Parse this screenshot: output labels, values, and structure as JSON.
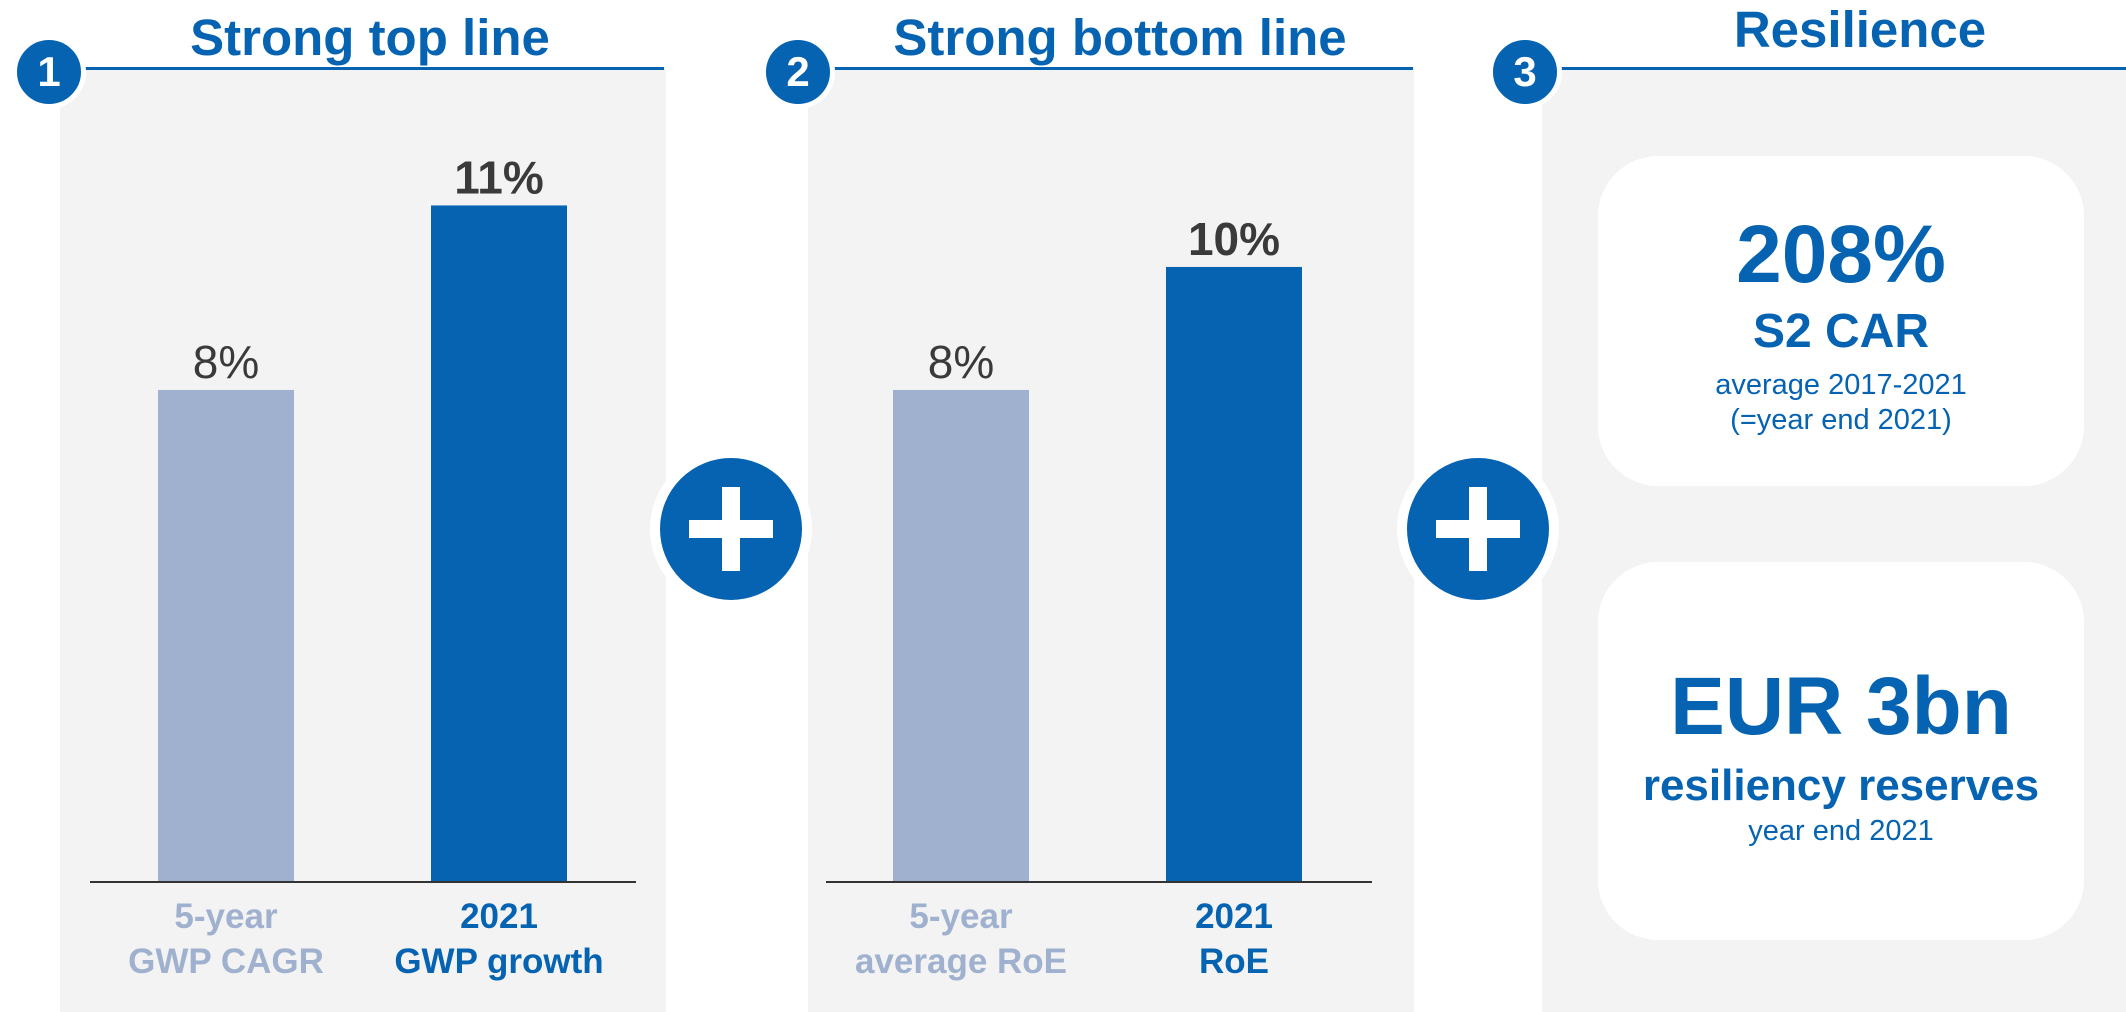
{
  "colors": {
    "accent": "#0563b2",
    "muted_bar": "#9fb1ce",
    "panel_bg": "#f3f3f3",
    "value_text": "#3a3a3a"
  },
  "sections": [
    {
      "number": "1",
      "title": "Strong top line"
    },
    {
      "number": "2",
      "title": "Strong bottom line"
    },
    {
      "number": "3",
      "title": "Resilience"
    }
  ],
  "chart_data": [
    {
      "type": "bar",
      "title": "Strong top line",
      "categories": [
        [
          "5-year",
          "GWP CAGR"
        ],
        [
          "2021",
          "GWP growth"
        ]
      ],
      "values": [
        8,
        11
      ],
      "value_labels": [
        "8%",
        "11%"
      ],
      "bar_colors": [
        "#9fb1ce",
        "#0563b2"
      ],
      "ylim": [
        0,
        11.3
      ]
    },
    {
      "type": "bar",
      "title": "Strong bottom line",
      "categories": [
        [
          "5-year",
          "average RoE"
        ],
        [
          "2021",
          "RoE"
        ]
      ],
      "values": [
        8,
        10
      ],
      "value_labels": [
        "8%",
        "10%"
      ],
      "bar_colors": [
        "#9fb1ce",
        "#0563b2"
      ],
      "ylim": [
        0,
        11.3
      ]
    }
  ],
  "resilience": {
    "car": {
      "value": "208%",
      "label": "S2 CAR",
      "note_line1": "average 2017-2021",
      "note_line2": "(=year end 2021)"
    },
    "reserves": {
      "value": "EUR 3bn",
      "label": "resiliency reserves",
      "note": "year end 2021"
    }
  }
}
